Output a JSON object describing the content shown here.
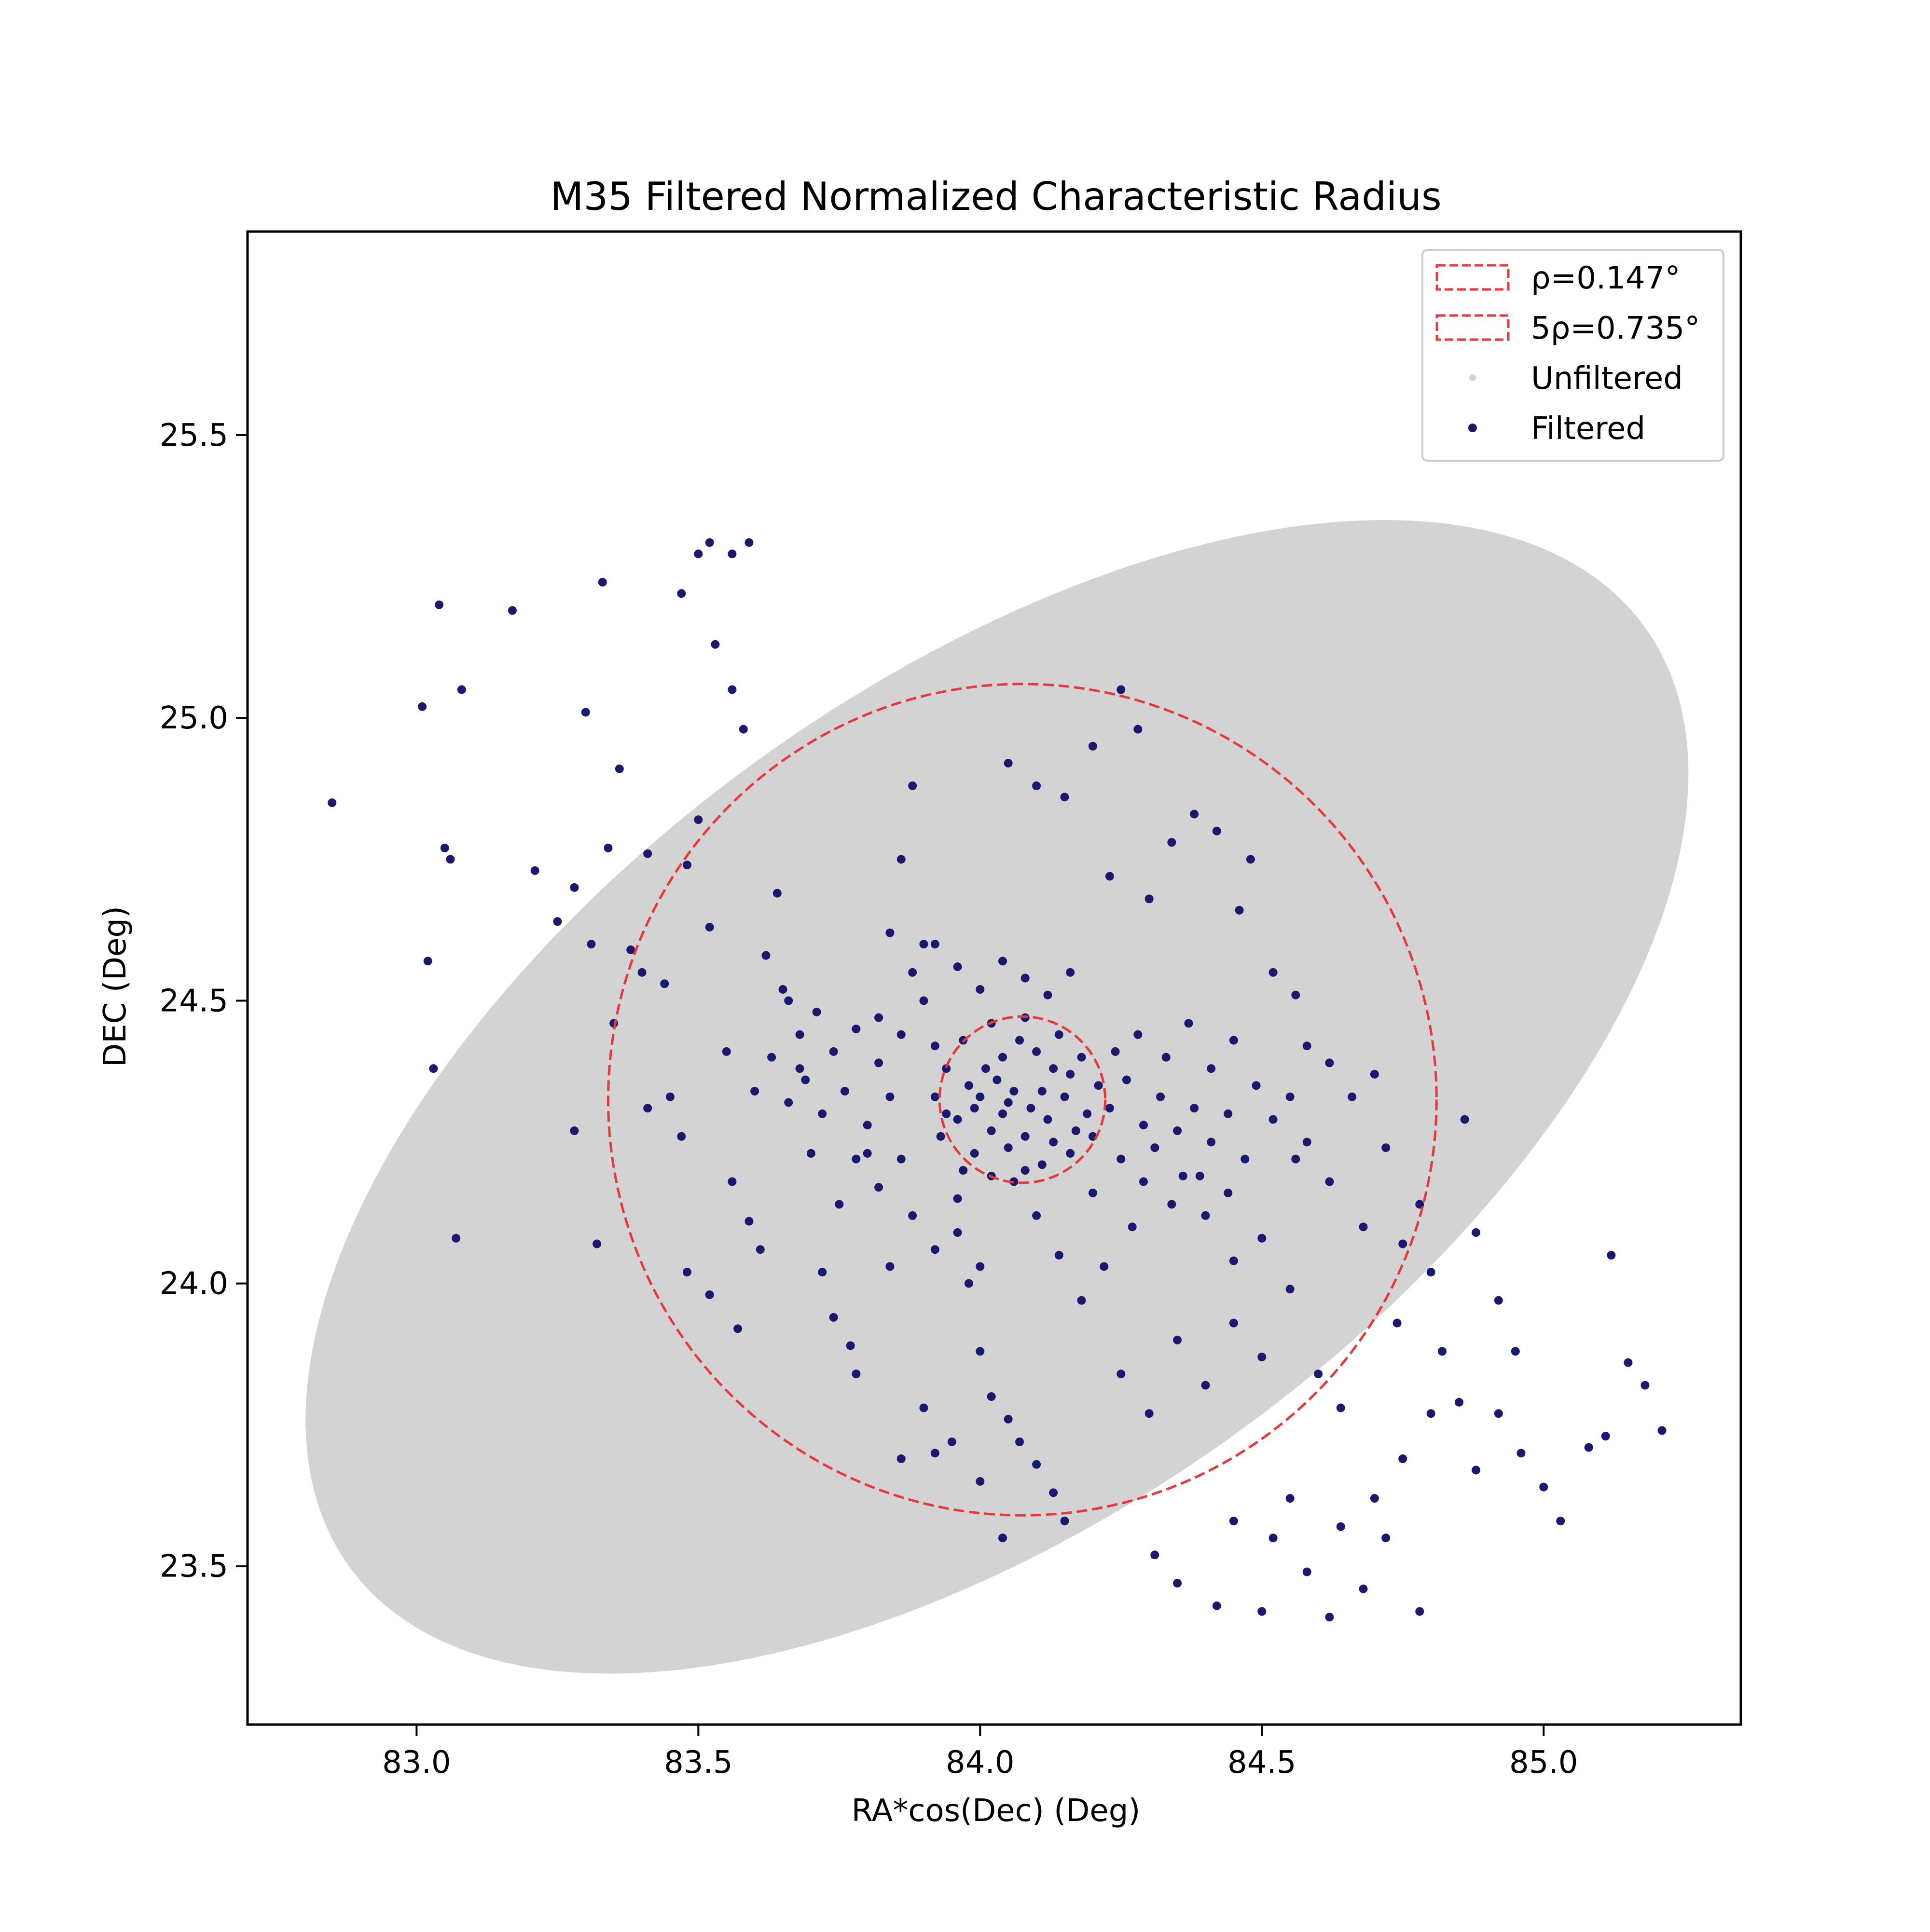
{
  "chart_data": {
    "type": "scatter",
    "title": "M35 Filtered Normalized Characteristic Radius",
    "xlabel": "RA*cos(Dec) (Deg)",
    "ylabel": "DEC (Deg)",
    "xlim": [
      82.7,
      85.35
    ],
    "ylim": [
      23.22,
      25.86
    ],
    "x_ticks": [
      83.0,
      83.5,
      84.0,
      84.5,
      85.0
    ],
    "x_tick_labels": [
      "83.0",
      "83.5",
      "84.0",
      "84.5",
      "85.0"
    ],
    "y_ticks": [
      23.5,
      24.0,
      24.5,
      25.0,
      25.5
    ],
    "y_tick_labels": [
      "23.5",
      "24.0",
      "24.5",
      "25.0",
      "25.5"
    ],
    "grid": false,
    "legend": {
      "placement": "top-right",
      "entries": [
        {
          "label": "ρ=0.147°",
          "kind": "dashed-circle",
          "color": "#e8383b"
        },
        {
          "label": "5ρ=0.735°",
          "kind": "dashed-circle",
          "color": "#e8383b"
        },
        {
          "label": "Unfiltered",
          "kind": "point",
          "color": "#d3d3d3"
        },
        {
          "label": "Filtered",
          "kind": "point",
          "color": "#191970"
        }
      ]
    },
    "circles": [
      {
        "name": "ρ=0.147°",
        "center": [
          84.075,
          24.325
        ],
        "radius": 0.147,
        "color": "#e8383b",
        "dashed": true
      },
      {
        "name": "5ρ=0.735°",
        "center": [
          84.075,
          24.325
        ],
        "radius": 0.735,
        "color": "#e8383b",
        "dashed": true
      }
    ],
    "unfiltered_region": {
      "shape": "ellipse",
      "center": [
        84.03,
        24.33
      ],
      "semi_major": 1.42,
      "semi_minor": 0.73,
      "angle_deg": -36,
      "color": "#d3d3d3"
    },
    "series": [
      {
        "name": "Filtered",
        "color": "#191970",
        "points": [
          [
            82.85,
            24.85
          ],
          [
            83.05,
            24.77
          ],
          [
            83.06,
            24.75
          ],
          [
            83.07,
            24.08
          ],
          [
            83.08,
            25.05
          ],
          [
            83.17,
            25.19
          ],
          [
            83.04,
            25.2
          ],
          [
            83.01,
            25.02
          ],
          [
            83.02,
            24.57
          ],
          [
            83.03,
            24.38
          ],
          [
            83.21,
            24.73
          ],
          [
            83.25,
            24.64
          ],
          [
            83.28,
            24.7
          ],
          [
            83.31,
            24.6
          ],
          [
            83.3,
            25.01
          ],
          [
            83.33,
            25.24
          ],
          [
            83.28,
            24.27
          ],
          [
            83.32,
            24.07
          ],
          [
            83.34,
            24.77
          ],
          [
            83.35,
            24.46
          ],
          [
            83.36,
            24.91
          ],
          [
            83.38,
            24.59
          ],
          [
            83.4,
            24.55
          ],
          [
            83.41,
            24.31
          ],
          [
            83.47,
            25.22
          ],
          [
            83.5,
            25.29
          ],
          [
            83.52,
            25.31
          ],
          [
            83.56,
            25.29
          ],
          [
            83.59,
            25.31
          ],
          [
            83.53,
            25.13
          ],
          [
            83.56,
            25.05
          ],
          [
            83.58,
            24.98
          ],
          [
            83.41,
            24.76
          ],
          [
            83.44,
            24.53
          ],
          [
            83.45,
            24.33
          ],
          [
            83.47,
            24.26
          ],
          [
            83.48,
            24.74
          ],
          [
            83.5,
            24.82
          ],
          [
            83.52,
            24.63
          ],
          [
            83.55,
            24.41
          ],
          [
            83.56,
            24.18
          ],
          [
            83.59,
            24.11
          ],
          [
            83.61,
            24.06
          ],
          [
            83.48,
            24.02
          ],
          [
            83.52,
            23.98
          ],
          [
            83.57,
            23.92
          ],
          [
            83.6,
            24.34
          ],
          [
            83.62,
            24.58
          ],
          [
            83.64,
            24.69
          ],
          [
            83.66,
            24.5
          ],
          [
            83.68,
            24.38
          ],
          [
            83.7,
            24.23
          ],
          [
            83.72,
            24.02
          ],
          [
            83.74,
            23.94
          ],
          [
            83.77,
            23.89
          ],
          [
            83.78,
            23.84
          ],
          [
            83.8,
            24.23
          ],
          [
            83.82,
            24.47
          ],
          [
            83.84,
            24.62
          ],
          [
            83.86,
            24.75
          ],
          [
            83.88,
            24.88
          ],
          [
            83.9,
            24.6
          ],
          [
            83.92,
            24.42
          ],
          [
            83.94,
            24.3
          ],
          [
            83.96,
            24.15
          ],
          [
            83.98,
            24.0
          ],
          [
            84.0,
            23.88
          ],
          [
            84.02,
            23.8
          ],
          [
            84.05,
            23.76
          ],
          [
            84.07,
            23.72
          ],
          [
            84.1,
            23.68
          ],
          [
            84.13,
            23.63
          ],
          [
            84.15,
            23.58
          ],
          [
            83.9,
            23.78
          ],
          [
            83.86,
            23.69
          ],
          [
            83.92,
            23.7
          ],
          [
            83.95,
            23.72
          ],
          [
            84.0,
            23.65
          ],
          [
            84.04,
            23.55
          ],
          [
            84.05,
            24.92
          ],
          [
            84.1,
            24.88
          ],
          [
            84.15,
            24.86
          ],
          [
            84.2,
            24.95
          ],
          [
            84.25,
            25.05
          ],
          [
            84.28,
            24.98
          ],
          [
            84.23,
            24.72
          ],
          [
            84.3,
            24.68
          ],
          [
            84.34,
            24.78
          ],
          [
            84.38,
            24.83
          ],
          [
            84.42,
            24.8
          ],
          [
            84.46,
            24.66
          ],
          [
            84.48,
            24.75
          ],
          [
            84.52,
            24.55
          ],
          [
            84.56,
            24.51
          ],
          [
            84.58,
            24.42
          ],
          [
            84.62,
            24.39
          ],
          [
            84.66,
            24.33
          ],
          [
            84.7,
            24.37
          ],
          [
            84.72,
            24.24
          ],
          [
            84.75,
            24.07
          ],
          [
            84.74,
            23.93
          ],
          [
            84.78,
            24.14
          ],
          [
            84.8,
            24.02
          ],
          [
            84.82,
            23.88
          ],
          [
            84.85,
            23.79
          ],
          [
            84.88,
            23.67
          ],
          [
            84.92,
            23.77
          ],
          [
            84.96,
            23.7
          ],
          [
            85.0,
            23.64
          ],
          [
            85.03,
            23.58
          ],
          [
            85.08,
            23.71
          ],
          [
            85.11,
            23.73
          ],
          [
            85.15,
            23.86
          ],
          [
            85.18,
            23.82
          ],
          [
            85.21,
            23.74
          ],
          [
            84.86,
            24.29
          ],
          [
            84.88,
            24.09
          ],
          [
            84.92,
            23.97
          ],
          [
            84.95,
            23.88
          ],
          [
            85.12,
            24.05
          ],
          [
            84.7,
            23.62
          ],
          [
            84.64,
            23.57
          ],
          [
            84.58,
            23.49
          ],
          [
            84.52,
            23.55
          ],
          [
            84.5,
            23.42
          ],
          [
            84.42,
            23.43
          ],
          [
            84.35,
            23.47
          ],
          [
            84.31,
            23.52
          ],
          [
            84.45,
            23.58
          ],
          [
            84.55,
            23.62
          ],
          [
            84.62,
            23.41
          ],
          [
            84.68,
            23.46
          ],
          [
            84.72,
            23.55
          ],
          [
            84.78,
            23.42
          ],
          [
            84.75,
            23.69
          ],
          [
            84.8,
            23.77
          ],
          [
            84.25,
            23.84
          ],
          [
            84.3,
            23.77
          ],
          [
            84.35,
            23.9
          ],
          [
            84.4,
            23.82
          ],
          [
            84.45,
            23.93
          ],
          [
            84.5,
            23.87
          ],
          [
            84.55,
            23.99
          ],
          [
            84.6,
            23.84
          ],
          [
            84.64,
            23.78
          ],
          [
            84.68,
            24.1
          ],
          [
            84.62,
            24.18
          ],
          [
            84.56,
            24.22
          ],
          [
            84.5,
            24.08
          ],
          [
            84.45,
            24.04
          ],
          [
            84.4,
            24.12
          ],
          [
            84.36,
            24.19
          ],
          [
            84.31,
            24.24
          ],
          [
            84.27,
            24.1
          ],
          [
            84.22,
            24.03
          ],
          [
            84.18,
            23.97
          ],
          [
            84.14,
            24.05
          ],
          [
            84.1,
            24.12
          ],
          [
            84.08,
            24.2
          ],
          [
            84.05,
            24.24
          ],
          [
            84.02,
            24.27
          ],
          [
            83.99,
            24.31
          ],
          [
            84.03,
            24.36
          ],
          [
            84.06,
            24.34
          ],
          [
            84.09,
            24.31
          ],
          [
            84.12,
            24.29
          ],
          [
            84.15,
            24.33
          ],
          [
            84.17,
            24.27
          ],
          [
            84.13,
            24.38
          ],
          [
            84.1,
            24.41
          ],
          [
            84.07,
            24.43
          ],
          [
            84.04,
            24.4
          ],
          [
            84.01,
            24.38
          ],
          [
            83.98,
            24.35
          ],
          [
            83.96,
            24.29
          ],
          [
            83.99,
            24.23
          ],
          [
            84.02,
            24.19
          ],
          [
            84.06,
            24.18
          ],
          [
            84.11,
            24.21
          ],
          [
            84.16,
            24.23
          ],
          [
            84.19,
            24.3
          ],
          [
            84.21,
            24.35
          ],
          [
            84.18,
            24.4
          ],
          [
            84.14,
            24.44
          ],
          [
            84.08,
            24.47
          ],
          [
            84.02,
            24.46
          ],
          [
            83.97,
            24.43
          ],
          [
            83.94,
            24.38
          ],
          [
            83.92,
            24.33
          ],
          [
            83.93,
            24.26
          ],
          [
            83.97,
            24.2
          ],
          [
            84.04,
            24.3
          ],
          [
            84.08,
            24.26
          ],
          [
            84.11,
            24.34
          ],
          [
            84.05,
            24.32
          ],
          [
            84.0,
            24.33
          ],
          [
            84.13,
            24.25
          ],
          [
            84.16,
            24.37
          ],
          [
            84.2,
            24.26
          ],
          [
            84.23,
            24.31
          ],
          [
            84.26,
            24.36
          ],
          [
            84.29,
            24.28
          ],
          [
            84.32,
            24.33
          ],
          [
            84.35,
            24.27
          ],
          [
            84.38,
            24.31
          ],
          [
            84.41,
            24.25
          ],
          [
            84.44,
            24.3
          ],
          [
            84.47,
            24.22
          ],
          [
            84.44,
            24.16
          ],
          [
            84.39,
            24.19
          ],
          [
            84.34,
            24.14
          ],
          [
            84.29,
            24.18
          ],
          [
            84.25,
            24.22
          ],
          [
            84.2,
            24.16
          ],
          [
            84.24,
            24.41
          ],
          [
            84.28,
            24.44
          ],
          [
            84.33,
            24.4
          ],
          [
            84.37,
            24.46
          ],
          [
            84.41,
            24.38
          ],
          [
            84.45,
            24.43
          ],
          [
            84.49,
            24.35
          ],
          [
            84.52,
            24.29
          ],
          [
            84.55,
            24.33
          ],
          [
            84.58,
            24.25
          ],
          [
            83.9,
            24.5
          ],
          [
            83.86,
            24.44
          ],
          [
            83.82,
            24.39
          ],
          [
            83.78,
            24.45
          ],
          [
            83.74,
            24.41
          ],
          [
            83.71,
            24.48
          ],
          [
            83.68,
            24.44
          ],
          [
            83.65,
            24.52
          ],
          [
            83.88,
            24.55
          ],
          [
            83.92,
            24.6
          ],
          [
            83.96,
            24.56
          ],
          [
            84.0,
            24.52
          ],
          [
            84.04,
            24.57
          ],
          [
            84.08,
            24.54
          ],
          [
            84.12,
            24.51
          ],
          [
            84.16,
            24.55
          ],
          [
            83.84,
            24.33
          ],
          [
            83.8,
            24.28
          ],
          [
            83.76,
            24.34
          ],
          [
            83.72,
            24.3
          ],
          [
            83.69,
            24.36
          ],
          [
            83.66,
            24.32
          ],
          [
            83.63,
            24.4
          ],
          [
            83.86,
            24.22
          ],
          [
            83.82,
            24.17
          ],
          [
            83.78,
            24.22
          ],
          [
            83.75,
            24.14
          ],
          [
            83.88,
            24.12
          ],
          [
            83.92,
            24.06
          ],
          [
            83.96,
            24.09
          ],
          [
            84.0,
            24.03
          ],
          [
            83.84,
            24.03
          ]
        ]
      }
    ]
  }
}
